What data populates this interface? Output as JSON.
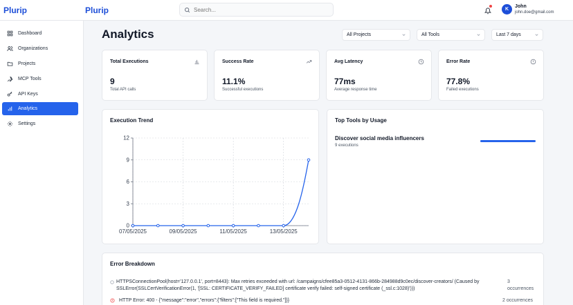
{
  "sidebar": {
    "brand": "Plurip",
    "items": [
      {
        "label": "Dashboard",
        "icon": "grid-icon"
      },
      {
        "label": "Organizations",
        "icon": "users-icon"
      },
      {
        "label": "Projects",
        "icon": "folder-icon"
      },
      {
        "label": "MCP Tools",
        "icon": "wrench-icon"
      },
      {
        "label": "API Keys",
        "icon": "key-icon"
      },
      {
        "label": "Analytics",
        "icon": "bar-chart-icon",
        "active": true
      },
      {
        "label": "Settings",
        "icon": "gear-icon"
      }
    ]
  },
  "header": {
    "brand": "Plurip",
    "search_placeholder": "Search...",
    "user": {
      "initial": "K",
      "name": "John",
      "email": "john.doe@gmail.com"
    }
  },
  "main": {
    "title": "Analytics",
    "filters": {
      "project": "All Projects",
      "tool": "All Tools",
      "range": "Last 7 days"
    },
    "stats": [
      {
        "title": "Total Executions",
        "value": "9",
        "sub": "Total API calls",
        "icon": "bar-chart-icon"
      },
      {
        "title": "Success Rate",
        "value": "11.1%",
        "sub": "Successful executions",
        "icon": "trending-up-icon"
      },
      {
        "title": "Avg Latency",
        "value": "77ms",
        "sub": "Average response time",
        "icon": "clock-icon"
      },
      {
        "title": "Error Rate",
        "value": "77.8%",
        "sub": "Failed executions",
        "icon": "alert-circle-icon"
      }
    ],
    "trend_title": "Execution Trend",
    "top_tools": {
      "title": "Top Tools by Usage",
      "items": [
        {
          "name": "Discover social media influencers",
          "count": "9 executions",
          "share": 1.0
        }
      ]
    },
    "errors": {
      "title": "Error Breakdown",
      "items": [
        {
          "text": "HTTPSConnectionPool(host='127.0.0.1', port=8443): Max retries exceeded with url: /campaigns/cfee85a3-0512-4131-866b-284988d9c0ec/discover-creators/ (Caused by SSLError(SSLCertVerificationError(1, '[SSL: CERTIFICATE_VERIFY_FAILED] certificate verify failed: self-signed certificate (_ssl.c:1028)')))",
          "occurrences": "3 occurrences"
        },
        {
          "text": "HTTP Error: 400 - {\"message\":\"error\",\"errors\":{\"filters\":[\"This field is required.\"]}}",
          "occurrences": "2 occurrences"
        }
      ]
    }
  },
  "chart_data": {
    "type": "line",
    "title": "Execution Trend",
    "x": [
      "07/05/2025",
      "08/05/2025",
      "09/05/2025",
      "10/05/2025",
      "11/05/2025",
      "12/05/2025",
      "13/05/2025",
      "14/05/2025"
    ],
    "xticks": [
      "07/05/2025",
      "09/05/2025",
      "11/05/2025",
      "13/05/2025"
    ],
    "series": [
      {
        "values": [
          0,
          0,
          0,
          0,
          0,
          0,
          0,
          9
        ]
      }
    ],
    "ylim": [
      0,
      12
    ],
    "yticks": [
      0,
      3,
      6,
      9,
      12
    ],
    "grid": true,
    "color": "#2563eb"
  }
}
